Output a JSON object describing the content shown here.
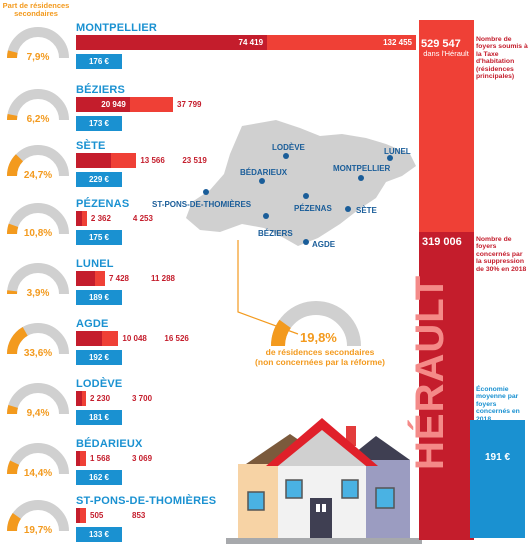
{
  "header_left": "Part de résidences secondaires",
  "colors": {
    "dark_red": "#c41d2c",
    "red": "#ef4036",
    "blue": "#1a91d1",
    "orange": "#f39a1e",
    "grey": "#d0d0d0"
  },
  "chart_data": {
    "type": "bar",
    "categories": [
      "MONTPELLIER",
      "BÉZIERS",
      "SÈTE",
      "PÉZENAS",
      "LUNEL",
      "AGDE",
      "LODÈVE",
      "BÉDARIEUX",
      "ST-PONS-DE-THOMIÈRES"
    ],
    "series": [
      {
        "name": "Nombre de foyers concernés par la suppression de 30% en 2018",
        "values": [
          74419,
          20949,
          13566,
          2362,
          7428,
          10048,
          2230,
          1568,
          505
        ]
      },
      {
        "name": "Nombre de foyers soumis à la Taxe d'habitation (résidences principales)",
        "values": [
          132455,
          37799,
          23519,
          4253,
          11288,
          16526,
          3700,
          3069,
          853
        ]
      },
      {
        "name": "Économie moyenne par foyers concernés en 2018",
        "values": [
          176,
          173,
          229,
          175,
          189,
          192,
          181,
          162,
          133
        ]
      },
      {
        "name": "Part de résidences secondaires",
        "values": [
          7.9,
          6.2,
          24.7,
          10.8,
          3.9,
          33.6,
          9.4,
          14.4,
          19.7
        ]
      }
    ],
    "labels": {
      "counts_dark": [
        "74 419",
        "20 949",
        "13 566",
        "2 362",
        "7 428",
        "10 048",
        "2 230",
        "1 568",
        "505"
      ],
      "counts_light": [
        "132 455",
        "37 799",
        "23 519",
        "4 253",
        "11 288",
        "16 526",
        "3 700",
        "3 069",
        "853"
      ],
      "euros": [
        "176 €",
        "173 €",
        "229 €",
        "175 €",
        "189 €",
        "192 €",
        "181 €",
        "162 €",
        "133 €"
      ],
      "pcts": [
        "7,9%",
        "6,2%",
        "24,7%",
        "10,8%",
        "3,9%",
        "33,6%",
        "9,4%",
        "14,4%",
        "19,7%"
      ]
    }
  },
  "map": {
    "cities": [
      "LODÈVE",
      "LUNEL",
      "BÉDARIEUX",
      "MONTPELLIER",
      "ST-PONS-DE-THOMIÈRES",
      "PÉZENAS",
      "SÈTE",
      "BÉZIERS",
      "AGDE"
    ]
  },
  "total": {
    "pct": "19,8%",
    "pct_value": 19.8,
    "caption_line1": "de résidences secondaires",
    "caption_line2": "(non concernées par la réforme)"
  },
  "herault": {
    "name": "HÉRAULT",
    "total_households": "529 547",
    "total_sub": "dans l'Hérault",
    "note_total": "Nombre de foyers soumis à la Taxe d'habitation (résidences principales)",
    "concerned": "319 006",
    "note_concerned": "Nombre de foyers concernés par la suppression de 30% en 2018",
    "note_saving": "Économie moyenne par foyers concernés en 2018",
    "saving": "191 €"
  }
}
